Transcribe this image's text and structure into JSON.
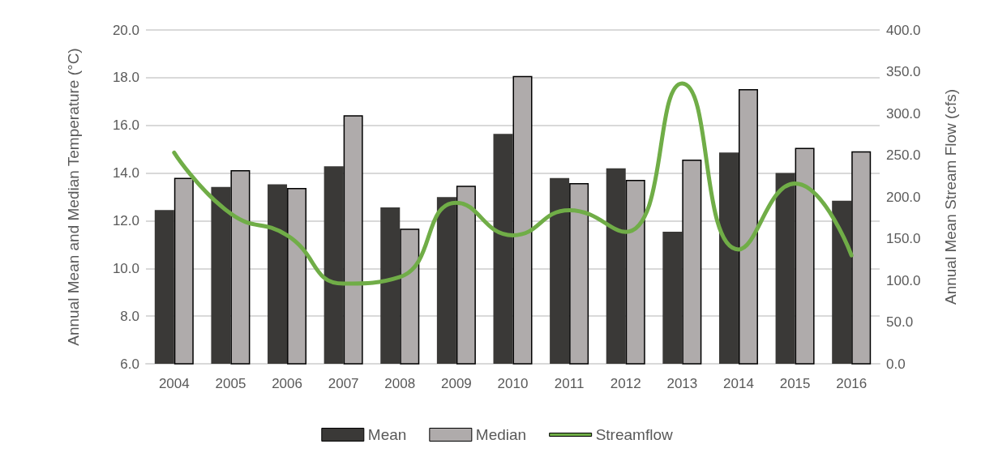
{
  "chart_data": {
    "type": "bar",
    "ylabel": "Annual Mean and Median Temperature (°C)",
    "y2label": "Annual Mean Stream Flow (cfs)",
    "categories": [
      "2004",
      "2005",
      "2006",
      "2007",
      "2008",
      "2009",
      "2010",
      "2011",
      "2012",
      "2013",
      "2014",
      "2015",
      "2016"
    ],
    "series": [
      {
        "name": "Mean",
        "color": "#3a3937",
        "values": [
          12.45,
          13.42,
          13.53,
          14.28,
          12.56,
          12.99,
          15.64,
          13.79,
          14.2,
          11.54,
          14.86,
          14.0,
          12.84
        ]
      },
      {
        "name": "Median",
        "color": "#afabab",
        "values": [
          13.8,
          14.12,
          13.37,
          16.42,
          11.67,
          13.47,
          18.07,
          13.58,
          13.71,
          14.56,
          17.52,
          15.06,
          14.91
        ]
      },
      {
        "name": "Streamflow",
        "type": "line",
        "axis": "y2",
        "color": "#70ad47",
        "values": [
          253,
          180,
          154,
          96,
          104,
          193,
          154,
          184,
          158,
          336,
          137,
          216,
          130
        ]
      }
    ],
    "ylim": [
      6,
      20
    ],
    "yticks": [
      {
        "value": 6,
        "label": "6.0"
      },
      {
        "value": 8,
        "label": "8.0"
      },
      {
        "value": 10,
        "label": "10.0"
      },
      {
        "value": 12,
        "label": "12.0"
      },
      {
        "value": 14,
        "label": "14.0"
      },
      {
        "value": 16,
        "label": "16.0"
      },
      {
        "value": 18,
        "label": "18.0"
      },
      {
        "value": 20,
        "label": "20.0"
      }
    ],
    "y2lim": [
      0,
      400
    ],
    "y2ticks": [
      {
        "value": 0,
        "label": "0.0"
      },
      {
        "value": 50,
        "label": "50.0"
      },
      {
        "value": 100,
        "label": "100.0"
      },
      {
        "value": 150,
        "label": "150.0"
      },
      {
        "value": 200,
        "label": "200.0"
      },
      {
        "value": 250,
        "label": "250.0"
      },
      {
        "value": 300,
        "label": "300.0"
      },
      {
        "value": 350,
        "label": "350.0"
      },
      {
        "value": 400,
        "label": "400.0"
      }
    ],
    "grid": "y",
    "legend": "bottom",
    "marker": "none",
    "line_style": "solid"
  }
}
